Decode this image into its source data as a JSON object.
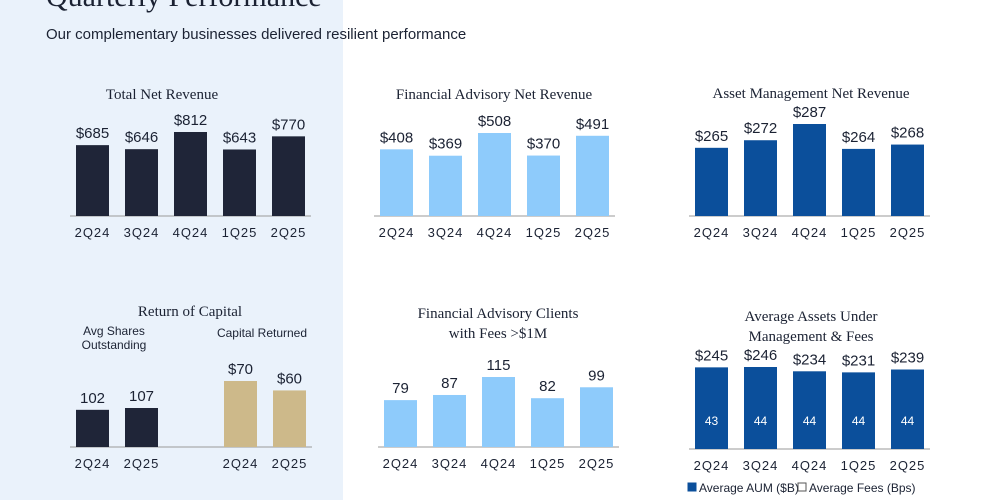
{
  "header": {
    "title": "Quarterly Performance",
    "subtitle": "Our complementary businesses delivered resilient performance"
  },
  "colors": {
    "navy": "#1f2538",
    "light_blue": "#8ecbfb",
    "blue": "#0b4f9b",
    "tan": "#cdb98a",
    "panel": "#eaf2fb"
  },
  "chart_data": [
    {
      "type": "bar",
      "title": "Total Net Revenue",
      "categories": [
        "2Q24",
        "3Q24",
        "4Q24",
        "1Q25",
        "2Q25"
      ],
      "values": [
        685,
        646,
        812,
        643,
        770
      ],
      "labels": [
        "$685",
        "$646",
        "$812",
        "$643",
        "$770"
      ],
      "color": "#1f2538"
    },
    {
      "type": "bar",
      "title": "Financial Advisory Net Revenue",
      "categories": [
        "2Q24",
        "3Q24",
        "4Q24",
        "1Q25",
        "2Q25"
      ],
      "values": [
        408,
        369,
        508,
        370,
        491
      ],
      "labels": [
        "$408",
        "$369",
        "$508",
        "$370",
        "$491"
      ],
      "color": "#8ecbfb"
    },
    {
      "type": "bar",
      "title": "Asset Management Net Revenue",
      "categories": [
        "2Q24",
        "3Q24",
        "4Q24",
        "1Q25",
        "2Q25"
      ],
      "values": [
        265,
        272,
        287,
        264,
        268
      ],
      "labels": [
        "$265",
        "$272",
        "$287",
        "$264",
        "$268"
      ],
      "color": "#0b4f9b"
    },
    {
      "type": "bar",
      "title": "Return of Capital",
      "groups": [
        {
          "name": "Avg Shares Outstanding",
          "categories": [
            "2Q24",
            "2Q25"
          ],
          "values": [
            102,
            107
          ],
          "labels": [
            "102",
            "107"
          ],
          "color": "#1f2538"
        },
        {
          "name": "Capital Returned",
          "categories": [
            "2Q24",
            "2Q25"
          ],
          "values": [
            70,
            60
          ],
          "labels": [
            "$70",
            "$60"
          ],
          "color": "#cdb98a"
        }
      ]
    },
    {
      "type": "bar",
      "title": "Financial Advisory Clients with Fees >$1M",
      "title_lines": [
        "Financial Advisory Clients",
        "with Fees >$1M"
      ],
      "categories": [
        "2Q24",
        "3Q24",
        "4Q24",
        "1Q25",
        "2Q25"
      ],
      "values": [
        79,
        87,
        115,
        82,
        99
      ],
      "labels": [
        "79",
        "87",
        "115",
        "82",
        "99"
      ],
      "color": "#8ecbfb"
    },
    {
      "type": "bar",
      "title": "Average Assets Under Management & Fees",
      "title_lines": [
        "Average Assets Under",
        "Management & Fees"
      ],
      "categories": [
        "2Q24",
        "3Q24",
        "4Q24",
        "1Q25",
        "2Q25"
      ],
      "values": [
        245,
        246,
        234,
        231,
        239
      ],
      "labels": [
        "$245",
        "$246",
        "$234",
        "$231",
        "$239"
      ],
      "inner_values": [
        43,
        44,
        44,
        44,
        44
      ],
      "color": "#0b4f9b",
      "legend": [
        {
          "name": "Average AUM ($B)",
          "color": "#0b4f9b"
        },
        {
          "name": "Average Fees (Bps)",
          "color": "#ffffff"
        }
      ],
      "legend_placement": "bottom"
    }
  ]
}
